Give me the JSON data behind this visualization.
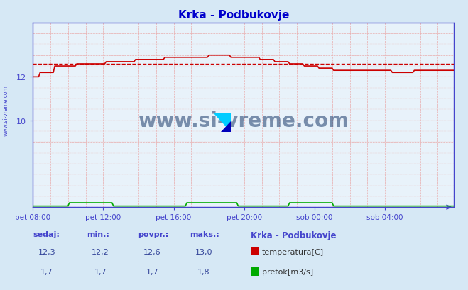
{
  "title": "Krka - Podbukovje",
  "bg_color": "#d6e8f5",
  "plot_bg_color": "#e8f2fa",
  "title_color": "#0000cc",
  "axis_color": "#4444cc",
  "grid_color": "#c8a8a8",
  "temp_color": "#cc0000",
  "flow_color": "#00aa00",
  "avg_color": "#cc0000",
  "watermark_color": "#1a3a6a",
  "xlabels": [
    "pet 08:00",
    "pet 12:00",
    "pet 16:00",
    "pet 20:00",
    "sob 00:00",
    "sob 04:00"
  ],
  "xtick_pos": [
    0,
    48,
    96,
    144,
    192,
    240
  ],
  "yticks": [
    10,
    12
  ],
  "ylim": [
    6.0,
    14.5
  ],
  "temp_avg": 12.6,
  "station_label": "Krka - Podbukovje",
  "legend_temp": "temperatura[C]",
  "legend_flow": "pretok[m3/s]",
  "table_headers": [
    "sedaj:",
    "min.:",
    "povpr.:",
    "maks.:"
  ],
  "table_temp": [
    "12,3",
    "12,2",
    "12,6",
    "13,0"
  ],
  "table_flow": [
    "1,7",
    "1,7",
    "1,7",
    "1,8"
  ],
  "watermark": "www.si-vreme.com",
  "left_label": "www.si-vreme.com",
  "n_points": 288
}
